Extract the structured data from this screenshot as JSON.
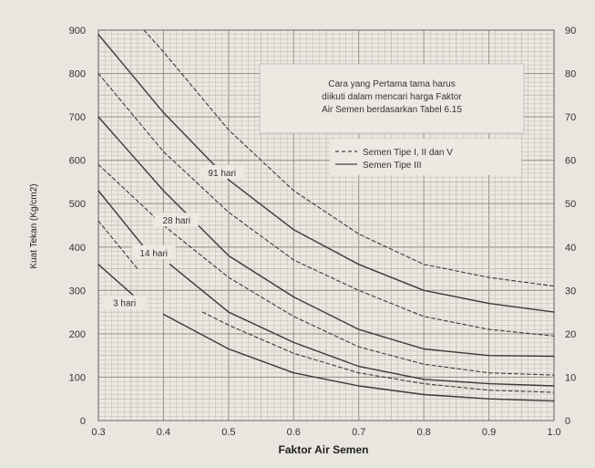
{
  "chart_data": {
    "type": "line",
    "xlabel": "Faktor Air Semen",
    "ylabel": "Kuat Tekan (Kg/cm2)",
    "xlim": [
      0.3,
      1.0
    ],
    "ylim": [
      0,
      900
    ],
    "ylim_right": [
      0,
      90
    ],
    "x_ticks": [
      "0.3",
      "0.4",
      "0.5",
      "0.6",
      "0.7",
      "0.8",
      "0.9",
      "1.0"
    ],
    "y_ticks": [
      "0",
      "100",
      "200",
      "300",
      "400",
      "500",
      "600",
      "700",
      "800",
      "900"
    ],
    "y_ticks_right": [
      "0",
      "10",
      "20",
      "30",
      "40",
      "50",
      "60",
      "70",
      "80",
      "90"
    ],
    "grid": true,
    "annotation": {
      "lines": [
        "Cara yang Pertama tama harus",
        "diikuti dalam mencari harga Faktor",
        "Air Semen berdasarkan Tabel 6.15"
      ]
    },
    "legend": {
      "placement": "top-right",
      "entries": [
        {
          "label": "Semen Tipe I, II dan V",
          "style": "dashed"
        },
        {
          "label": "Semen Tipe III",
          "style": "solid"
        }
      ]
    },
    "curve_labels": [
      {
        "text": "91 hari",
        "x": 0.49,
        "y": 570
      },
      {
        "text": "28 hari",
        "x": 0.42,
        "y": 460
      },
      {
        "text": "14 hari",
        "x": 0.385,
        "y": 385
      },
      {
        "text": "3 hari",
        "x": 0.34,
        "y": 270
      }
    ],
    "series": [
      {
        "style": "solid",
        "x": [
          0.3,
          0.4,
          0.5,
          0.6,
          0.7,
          0.8,
          0.9,
          1.0
        ],
        "y": [
          890,
          710,
          555,
          440,
          360,
          300,
          270,
          250
        ]
      },
      {
        "style": "dashed",
        "x": [
          0.37,
          0.4,
          0.5,
          0.6,
          0.7,
          0.8,
          0.9,
          1.0
        ],
        "y": [
          900,
          850,
          670,
          530,
          430,
          360,
          330,
          310
        ]
      },
      {
        "style": "dashed",
        "x": [
          0.3,
          0.4,
          0.5,
          0.6,
          0.7,
          0.8,
          0.9,
          1.0
        ],
        "y": [
          800,
          620,
          480,
          370,
          300,
          240,
          210,
          195
        ]
      },
      {
        "style": "solid",
        "x": [
          0.3,
          0.4,
          0.5,
          0.6,
          0.7,
          0.8,
          0.9,
          1.0
        ],
        "y": [
          700,
          530,
          380,
          285,
          210,
          165,
          150,
          148
        ]
      },
      {
        "style": "dashed",
        "x": [
          0.3,
          0.4,
          0.5,
          0.6,
          0.7,
          0.8,
          0.9,
          1.0
        ],
        "y": [
          590,
          450,
          330,
          240,
          170,
          130,
          110,
          105
        ]
      },
      {
        "style": "solid",
        "x": [
          0.3,
          0.37
        ],
        "y": [
          530,
          400
        ]
      },
      {
        "style": "solid",
        "x": [
          0.41,
          0.5,
          0.6,
          0.7,
          0.8,
          0.9,
          1.0
        ],
        "y": [
          360,
          250,
          180,
          125,
          95,
          85,
          80
        ]
      },
      {
        "style": "dashed",
        "x": [
          0.3,
          0.36
        ],
        "y": [
          460,
          350
        ]
      },
      {
        "style": "dashed",
        "x": [
          0.46,
          0.5,
          0.6,
          0.7,
          0.8,
          0.9,
          1.0
        ],
        "y": [
          250,
          220,
          155,
          110,
          85,
          70,
          65
        ]
      },
      {
        "style": "solid",
        "x": [
          0.3,
          0.36
        ],
        "y": [
          360,
          280
        ]
      },
      {
        "style": "solid",
        "x": [
          0.4,
          0.5,
          0.6,
          0.7,
          0.8,
          0.9,
          1.0
        ],
        "y": [
          245,
          165,
          110,
          80,
          60,
          50,
          45
        ]
      }
    ]
  }
}
